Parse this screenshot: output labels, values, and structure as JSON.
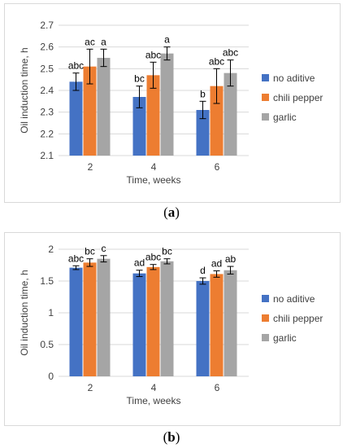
{
  "chart_data": [
    {
      "type": "bar",
      "panel_label": "a",
      "categories": [
        "2",
        "4",
        "6"
      ],
      "xlabel": "Time, weeks",
      "ylabel": "Oil induction time, h",
      "ylim": [
        2.1,
        2.7
      ],
      "yticks": [
        2.1,
        2.2,
        2.3,
        2.4,
        2.5,
        2.6,
        2.7
      ],
      "ytick_labels": [
        "2.1",
        "2.2",
        "2.3",
        "2.4",
        "2.5",
        "2.6",
        "2.7"
      ],
      "grid": true,
      "legend_position": "right",
      "series": [
        {
          "name": "no aditive",
          "color": "#4472C4",
          "values": [
            2.44,
            2.37,
            2.31
          ],
          "errors": [
            0.04,
            0.05,
            0.04
          ],
          "labels": [
            "abc",
            "bc",
            "b"
          ]
        },
        {
          "name": "chili pepper",
          "color": "#ED7D31",
          "values": [
            2.51,
            2.47,
            2.42
          ],
          "errors": [
            0.08,
            0.06,
            0.08
          ],
          "labels": [
            "ac",
            "abc",
            "abc"
          ]
        },
        {
          "name": "garlic",
          "color": "#A5A5A5",
          "values": [
            2.55,
            2.57,
            2.48
          ],
          "errors": [
            0.04,
            0.03,
            0.06
          ],
          "labels": [
            "a",
            "a",
            "abc"
          ]
        }
      ]
    },
    {
      "type": "bar",
      "panel_label": "b",
      "categories": [
        "2",
        "4",
        "6"
      ],
      "xlabel": "Time, weeks",
      "ylabel": "Oil induction time, h",
      "ylim": [
        0,
        2
      ],
      "yticks": [
        0,
        0.5,
        1,
        1.5,
        2
      ],
      "ytick_labels": [
        "0",
        "0.5",
        "1",
        "1.5",
        "2"
      ],
      "grid": true,
      "legend_position": "right",
      "series": [
        {
          "name": "no aditive",
          "color": "#4472C4",
          "values": [
            1.71,
            1.62,
            1.5
          ],
          "errors": [
            0.03,
            0.05,
            0.05
          ],
          "labels": [
            "abc",
            "ad",
            "d"
          ]
        },
        {
          "name": "chili pepper",
          "color": "#ED7D31",
          "values": [
            1.79,
            1.72,
            1.61
          ],
          "errors": [
            0.06,
            0.04,
            0.05
          ],
          "labels": [
            "bc",
            "abc",
            "ad"
          ]
        },
        {
          "name": "garlic",
          "color": "#A5A5A5",
          "values": [
            1.85,
            1.81,
            1.67
          ],
          "errors": [
            0.05,
            0.04,
            0.06
          ],
          "labels": [
            "c",
            "bc",
            "ab"
          ]
        }
      ]
    }
  ],
  "captions": {
    "a": "a",
    "b": "b"
  }
}
